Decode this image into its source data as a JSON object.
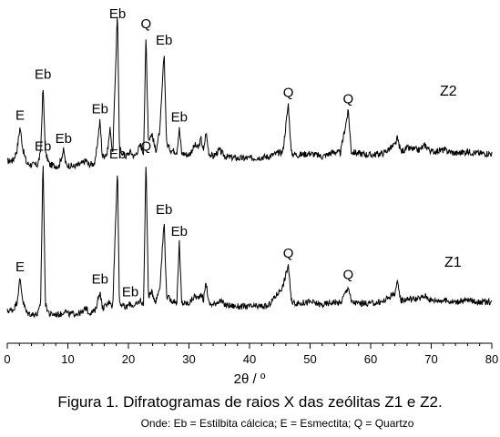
{
  "chart_data": {
    "type": "line",
    "xlabel": "2θ / º",
    "xlim": [
      0,
      80
    ],
    "xticks": [
      0,
      10,
      20,
      30,
      40,
      50,
      60,
      70,
      80
    ],
    "y_axis_visible": false,
    "grid": false,
    "legend": "none",
    "series": [
      {
        "name": "Z2",
        "baseline": 0,
        "noise": 0.02,
        "points": [
          [
            0,
            0.07
          ],
          [
            1.0,
            0.08
          ],
          [
            1.6,
            0.14
          ],
          [
            2.1,
            0.28
          ],
          [
            2.6,
            0.14
          ],
          [
            3.2,
            0.06
          ],
          [
            4.0,
            0.05
          ],
          [
            5.0,
            0.05
          ],
          [
            5.5,
            0.12
          ],
          [
            5.9,
            0.53
          ],
          [
            6.3,
            0.12
          ],
          [
            7.0,
            0.05
          ],
          [
            8.5,
            0.04
          ],
          [
            9.3,
            0.14
          ],
          [
            9.7,
            0.05
          ],
          [
            11,
            0.04
          ],
          [
            12.5,
            0.06
          ],
          [
            13.0,
            0.08
          ],
          [
            13.4,
            0.05
          ],
          [
            14.5,
            0.06
          ],
          [
            15.3,
            0.32
          ],
          [
            15.7,
            0.1
          ],
          [
            16.5,
            0.12
          ],
          [
            17.0,
            0.28
          ],
          [
            17.4,
            0.1
          ],
          [
            18.2,
            1.0
          ],
          [
            18.5,
            0.15
          ],
          [
            19.5,
            0.1
          ],
          [
            20.3,
            0.13
          ],
          [
            21.0,
            0.1
          ],
          [
            22.0,
            0.17
          ],
          [
            22.5,
            0.12
          ],
          [
            22.9,
            0.84
          ],
          [
            23.3,
            0.2
          ],
          [
            23.9,
            0.24
          ],
          [
            24.5,
            0.13
          ],
          [
            25.2,
            0.26
          ],
          [
            25.9,
            0.74
          ],
          [
            26.3,
            0.18
          ],
          [
            27.0,
            0.14
          ],
          [
            28.0,
            0.13
          ],
          [
            28.4,
            0.27
          ],
          [
            28.8,
            0.12
          ],
          [
            30,
            0.11
          ],
          [
            31.0,
            0.17
          ],
          [
            31.5,
            0.15
          ],
          [
            32.0,
            0.21
          ],
          [
            32.4,
            0.13
          ],
          [
            32.8,
            0.25
          ],
          [
            33.3,
            0.12
          ],
          [
            34,
            0.1
          ],
          [
            35,
            0.14
          ],
          [
            36,
            0.1
          ],
          [
            38,
            0.09
          ],
          [
            40,
            0.09
          ],
          [
            43,
            0.1
          ],
          [
            45.5,
            0.13
          ],
          [
            46.4,
            0.42
          ],
          [
            46.9,
            0.12
          ],
          [
            48,
            0.11
          ],
          [
            50,
            0.12
          ],
          [
            52,
            0.1
          ],
          [
            54,
            0.13
          ],
          [
            55,
            0.12
          ],
          [
            56.3,
            0.38
          ],
          [
            56.8,
            0.13
          ],
          [
            58,
            0.12
          ],
          [
            60,
            0.11
          ],
          [
            62,
            0.12
          ],
          [
            64.0,
            0.17
          ],
          [
            64.4,
            0.21
          ],
          [
            65,
            0.13
          ],
          [
            66,
            0.15
          ],
          [
            68,
            0.14
          ],
          [
            69,
            0.17
          ],
          [
            70,
            0.13
          ],
          [
            72,
            0.14
          ],
          [
            74,
            0.12
          ],
          [
            76,
            0.13
          ],
          [
            78,
            0.12
          ],
          [
            80,
            0.12
          ]
        ]
      },
      {
        "name": "Z1",
        "baseline": 0,
        "noise": 0.02,
        "points": [
          [
            0,
            0.06
          ],
          [
            1.0,
            0.07
          ],
          [
            1.6,
            0.12
          ],
          [
            2.1,
            0.27
          ],
          [
            2.6,
            0.12
          ],
          [
            3.2,
            0.05
          ],
          [
            4.0,
            0.04
          ],
          [
            5.0,
            0.04
          ],
          [
            5.5,
            0.1
          ],
          [
            5.9,
            1.05
          ],
          [
            6.3,
            0.1
          ],
          [
            7.0,
            0.04
          ],
          [
            9.0,
            0.04
          ],
          [
            9.5,
            0.07
          ],
          [
            10,
            0.04
          ],
          [
            12.5,
            0.05
          ],
          [
            13.0,
            0.09
          ],
          [
            13.4,
            0.05
          ],
          [
            14.5,
            0.06
          ],
          [
            15.3,
            0.19
          ],
          [
            15.7,
            0.08
          ],
          [
            16.5,
            0.1
          ],
          [
            17.0,
            0.13
          ],
          [
            17.4,
            0.08
          ],
          [
            18.2,
            1.0
          ],
          [
            18.5,
            0.12
          ],
          [
            19.5,
            0.08
          ],
          [
            20.3,
            0.11
          ],
          [
            21.0,
            0.09
          ],
          [
            22.0,
            0.13
          ],
          [
            22.5,
            0.1
          ],
          [
            22.9,
            1.05
          ],
          [
            23.3,
            0.16
          ],
          [
            23.9,
            0.18
          ],
          [
            24.5,
            0.12
          ],
          [
            25.2,
            0.22
          ],
          [
            25.9,
            0.64
          ],
          [
            26.3,
            0.16
          ],
          [
            27.0,
            0.13
          ],
          [
            28.0,
            0.12
          ],
          [
            28.4,
            0.5
          ],
          [
            28.8,
            0.11
          ],
          [
            30,
            0.11
          ],
          [
            31.0,
            0.16
          ],
          [
            31.5,
            0.14
          ],
          [
            32.0,
            0.18
          ],
          [
            32.4,
            0.13
          ],
          [
            32.8,
            0.25
          ],
          [
            33.3,
            0.11
          ],
          [
            34,
            0.1
          ],
          [
            35,
            0.13
          ],
          [
            36,
            0.1
          ],
          [
            38,
            0.09
          ],
          [
            40,
            0.09
          ],
          [
            43,
            0.09
          ],
          [
            45.5,
            0.22
          ],
          [
            46.4,
            0.36
          ],
          [
            46.9,
            0.12
          ],
          [
            48,
            0.11
          ],
          [
            50,
            0.12
          ],
          [
            52,
            0.1
          ],
          [
            54,
            0.12
          ],
          [
            55,
            0.11
          ],
          [
            56.3,
            0.22
          ],
          [
            56.8,
            0.12
          ],
          [
            58,
            0.11
          ],
          [
            60,
            0.11
          ],
          [
            62,
            0.12
          ],
          [
            64.0,
            0.18
          ],
          [
            64.4,
            0.24
          ],
          [
            65,
            0.13
          ],
          [
            66,
            0.14
          ],
          [
            68,
            0.14
          ],
          [
            69,
            0.16
          ],
          [
            70,
            0.13
          ],
          [
            72,
            0.13
          ],
          [
            74,
            0.12
          ],
          [
            76,
            0.13
          ],
          [
            78,
            0.12
          ],
          [
            80,
            0.12
          ]
        ]
      }
    ],
    "annotations": [
      {
        "series": "Z2",
        "text": "E",
        "x": 2.1
      },
      {
        "series": "Z2",
        "text": "Eb",
        "x": 5.9
      },
      {
        "series": "Z2",
        "text": "Eb",
        "x": 9.3
      },
      {
        "series": "Z2",
        "text": "Eb",
        "x": 15.3
      },
      {
        "series": "Z2",
        "text": "Eb",
        "x": 18.2
      },
      {
        "series": "Z2",
        "text": "Q",
        "x": 22.9
      },
      {
        "series": "Z2",
        "text": "Eb",
        "x": 25.9
      },
      {
        "series": "Z2",
        "text": "Eb",
        "x": 28.4
      },
      {
        "series": "Z2",
        "text": "Q",
        "x": 46.4
      },
      {
        "series": "Z2",
        "text": "Q",
        "x": 56.3
      },
      {
        "series": "Z1",
        "text": "E",
        "x": 2.1
      },
      {
        "series": "Z1",
        "text": "Eb",
        "x": 5.9
      },
      {
        "series": "Z1",
        "text": "Eb",
        "x": 15.3
      },
      {
        "series": "Z1",
        "text": "Eb",
        "x": 18.2
      },
      {
        "series": "Z1",
        "text": "Eb",
        "x": 20.3
      },
      {
        "series": "Z1",
        "text": "Q",
        "x": 22.9
      },
      {
        "series": "Z1",
        "text": "Eb",
        "x": 25.9
      },
      {
        "series": "Z1",
        "text": "Eb",
        "x": 28.4
      },
      {
        "series": "Z1",
        "text": "Q",
        "x": 46.4
      },
      {
        "series": "Z1",
        "text": "Q",
        "x": 56.3
      }
    ],
    "series_labels": [
      "Z2",
      "Z1"
    ]
  },
  "caption": {
    "main": "Figura 1. Difratogramas de raios X das zeólitas Z1 e Z2.",
    "note": "Onde: Eb = Estilbita cálcica; E = Esmectita; Q = Quartzo"
  }
}
